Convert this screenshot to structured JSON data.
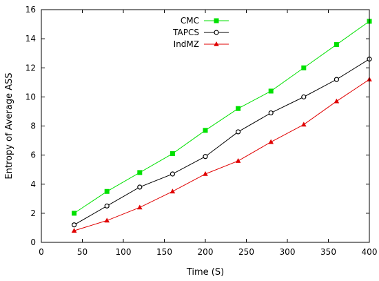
{
  "chart_data": {
    "type": "line",
    "xlabel": "Time (S)",
    "ylabel": "Entropy of Average ASS",
    "xlim": [
      0,
      400
    ],
    "ylim": [
      0,
      16
    ],
    "xticks": [
      0,
      50,
      100,
      150,
      200,
      250,
      300,
      350,
      400
    ],
    "yticks": [
      0,
      2,
      4,
      6,
      8,
      10,
      12,
      14,
      16
    ],
    "grid": false,
    "legend_position": "top-center",
    "x": [
      40,
      80,
      120,
      160,
      200,
      240,
      280,
      320,
      360,
      400
    ],
    "series": [
      {
        "name": "CMC",
        "color": "#00e000",
        "marker": "square",
        "values": [
          2.0,
          3.5,
          4.8,
          6.1,
          7.7,
          9.2,
          10.4,
          12.0,
          13.6,
          15.2
        ]
      },
      {
        "name": "TAPCS",
        "color": "#000000",
        "marker": "circle",
        "values": [
          1.2,
          2.5,
          3.8,
          4.7,
          5.9,
          7.6,
          8.9,
          10.0,
          11.2,
          12.6
        ]
      },
      {
        "name": "IndMZ",
        "color": "#e00000",
        "marker": "triangle",
        "values": [
          0.8,
          1.5,
          2.4,
          3.5,
          4.7,
          5.6,
          6.9,
          8.1,
          9.7,
          11.2
        ]
      }
    ]
  }
}
